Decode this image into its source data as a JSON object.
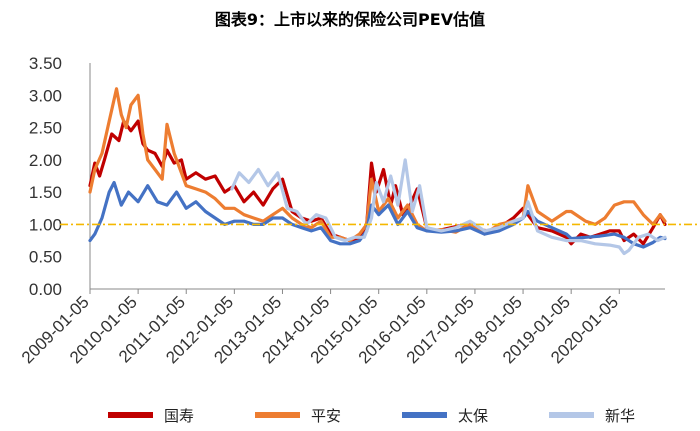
{
  "chart_data": {
    "type": "line",
    "title": "图表9：上市以来的保险公司PEV估值",
    "xlabel": "",
    "ylabel": "",
    "ylim": [
      0,
      3.5
    ],
    "yticks": [
      "3.50",
      "3.00",
      "2.50",
      "2.00",
      "1.50",
      "1.00",
      "0.50",
      "0.00"
    ],
    "xticks": [
      "2009-01-05",
      "2010-01-05",
      "2011-01-05",
      "2012-01-05",
      "2013-01-05",
      "2014-01-05",
      "2015-01-05",
      "2016-01-05",
      "2017-01-05",
      "2018-01-05",
      "2019-01-05",
      "2020-01-05"
    ],
    "xlim": [
      2009.0,
      2020.95
    ],
    "reference_line": {
      "y": 1.0,
      "color": "#F5B800",
      "style": "dash-dot"
    },
    "legend_position": "bottom",
    "series": [
      {
        "name": "国寿",
        "color": "#C00000",
        "x": [
          2009.0,
          2009.1,
          2009.2,
          2009.3,
          2009.45,
          2009.6,
          2009.7,
          2009.85,
          2010.0,
          2010.1,
          2010.2,
          2010.35,
          2010.5,
          2010.6,
          2010.75,
          2010.9,
          2011.0,
          2011.2,
          2011.4,
          2011.6,
          2011.8,
          2012.0,
          2012.2,
          2012.4,
          2012.6,
          2012.8,
          2013.0,
          2013.2,
          2013.4,
          2013.6,
          2013.8,
          2014.0,
          2014.2,
          2014.4,
          2014.6,
          2014.75,
          2014.85,
          2014.95,
          2015.1,
          2015.25,
          2015.35,
          2015.5,
          2015.65,
          2015.8,
          2016.0,
          2016.2,
          2016.5,
          2016.8,
          2017.0,
          2017.3,
          2017.6,
          2017.8,
          2018.0,
          2018.1,
          2018.3,
          2018.6,
          2018.9,
          2019.0,
          2019.2,
          2019.4,
          2019.6,
          2019.8,
          2020.0,
          2020.1,
          2020.3,
          2020.5,
          2020.7,
          2020.85,
          2020.95
        ],
        "values": [
          1.6,
          1.95,
          1.75,
          2.0,
          2.4,
          2.3,
          2.6,
          2.45,
          2.6,
          2.25,
          2.15,
          2.1,
          1.9,
          2.15,
          1.95,
          2.0,
          1.7,
          1.8,
          1.7,
          1.75,
          1.5,
          1.6,
          1.35,
          1.5,
          1.3,
          1.55,
          1.7,
          1.2,
          1.1,
          1.05,
          1.1,
          0.85,
          0.8,
          0.75,
          0.8,
          1.0,
          1.95,
          1.5,
          1.85,
          1.3,
          1.6,
          1.15,
          1.3,
          1.55,
          0.95,
          0.9,
          0.95,
          1.0,
          0.92,
          0.9,
          1.0,
          1.1,
          1.25,
          1.15,
          0.95,
          0.9,
          0.8,
          0.7,
          0.85,
          0.8,
          0.85,
          0.9,
          0.9,
          0.75,
          0.85,
          0.7,
          0.95,
          1.15,
          1.0
        ]
      },
      {
        "name": "平安",
        "color": "#ED7D31",
        "x": [
          2009.0,
          2009.1,
          2009.25,
          2009.4,
          2009.55,
          2009.65,
          2009.75,
          2009.85,
          2010.0,
          2010.1,
          2010.2,
          2010.35,
          2010.5,
          2010.6,
          2010.75,
          2010.9,
          2011.0,
          2011.2,
          2011.4,
          2011.6,
          2011.8,
          2012.0,
          2012.2,
          2012.4,
          2012.6,
          2012.8,
          2013.0,
          2013.2,
          2013.4,
          2013.6,
          2013.8,
          2014.0,
          2014.2,
          2014.4,
          2014.6,
          2014.75,
          2014.85,
          2015.0,
          2015.2,
          2015.4,
          2015.6,
          2015.8,
          2016.0,
          2016.3,
          2016.6,
          2016.9,
          2017.2,
          2017.5,
          2017.8,
          2018.0,
          2018.1,
          2018.3,
          2018.6,
          2018.9,
          2019.0,
          2019.3,
          2019.5,
          2019.7,
          2019.9,
          2020.1,
          2020.3,
          2020.5,
          2020.7,
          2020.85,
          2020.95
        ],
        "values": [
          1.5,
          1.85,
          2.1,
          2.6,
          3.1,
          2.7,
          2.5,
          2.85,
          3.0,
          2.4,
          2.0,
          1.85,
          1.7,
          2.55,
          2.1,
          1.8,
          1.6,
          1.55,
          1.5,
          1.4,
          1.25,
          1.25,
          1.15,
          1.1,
          1.05,
          1.15,
          1.25,
          1.1,
          1.0,
          0.95,
          1.05,
          0.8,
          0.8,
          0.75,
          0.85,
          1.0,
          1.7,
          1.2,
          1.4,
          1.1,
          1.3,
          1.0,
          0.9,
          0.92,
          0.88,
          1.0,
          0.85,
          1.0,
          1.05,
          1.1,
          1.6,
          1.2,
          1.05,
          1.2,
          1.2,
          1.05,
          1.0,
          1.1,
          1.3,
          1.35,
          1.35,
          1.15,
          1.0,
          1.15,
          1.05
        ]
      },
      {
        "name": "太保",
        "color": "#4472C4",
        "x": [
          2009.0,
          2009.1,
          2009.25,
          2009.4,
          2009.5,
          2009.65,
          2009.8,
          2010.0,
          2010.2,
          2010.4,
          2010.6,
          2010.8,
          2011.0,
          2011.2,
          2011.4,
          2011.6,
          2011.8,
          2012.0,
          2012.2,
          2012.4,
          2012.6,
          2012.8,
          2013.0,
          2013.2,
          2013.4,
          2013.6,
          2013.8,
          2014.0,
          2014.2,
          2014.4,
          2014.6,
          2014.75,
          2014.85,
          2015.0,
          2015.2,
          2015.4,
          2015.6,
          2015.8,
          2016.0,
          2016.3,
          2016.6,
          2016.9,
          2017.2,
          2017.5,
          2017.8,
          2018.0,
          2018.1,
          2018.3,
          2018.6,
          2018.9,
          2019.0,
          2019.3,
          2019.6,
          2019.9,
          2020.1,
          2020.3,
          2020.5,
          2020.7,
          2020.85,
          2020.95
        ],
        "values": [
          0.75,
          0.85,
          1.1,
          1.5,
          1.65,
          1.3,
          1.5,
          1.35,
          1.6,
          1.35,
          1.3,
          1.5,
          1.25,
          1.35,
          1.2,
          1.1,
          1.0,
          1.05,
          1.05,
          1.0,
          1.0,
          1.1,
          1.1,
          1.0,
          0.95,
          0.9,
          0.95,
          0.75,
          0.7,
          0.7,
          0.75,
          0.9,
          1.3,
          1.15,
          1.3,
          1.0,
          1.2,
          0.95,
          0.9,
          0.88,
          0.9,
          0.95,
          0.85,
          0.9,
          1.0,
          1.1,
          1.2,
          1.05,
          0.95,
          0.85,
          0.78,
          0.8,
          0.82,
          0.85,
          0.8,
          0.7,
          0.65,
          0.72,
          0.8,
          0.78
        ]
      },
      {
        "name": "新华",
        "color": "#B4C7E7",
        "x": [
          2011.95,
          2012.1,
          2012.3,
          2012.5,
          2012.7,
          2012.9,
          2013.1,
          2013.3,
          2013.5,
          2013.7,
          2013.9,
          2014.1,
          2014.3,
          2014.5,
          2014.7,
          2014.85,
          2014.95,
          2015.1,
          2015.25,
          2015.4,
          2015.55,
          2015.7,
          2015.85,
          2016.0,
          2016.3,
          2016.6,
          2016.9,
          2017.2,
          2017.5,
          2017.8,
          2018.0,
          2018.1,
          2018.3,
          2018.6,
          2018.9,
          2019.2,
          2019.5,
          2019.8,
          2020.0,
          2020.1,
          2020.2,
          2020.4,
          2020.6,
          2020.8,
          2020.95
        ],
        "values": [
          1.55,
          1.8,
          1.65,
          1.85,
          1.6,
          1.8,
          1.25,
          1.2,
          1.0,
          1.15,
          1.1,
          0.8,
          0.75,
          0.8,
          0.8,
          1.1,
          1.65,
          1.35,
          1.75,
          1.3,
          2.0,
          1.2,
          1.6,
          0.95,
          0.9,
          0.95,
          1.05,
          0.9,
          0.95,
          1.05,
          1.1,
          1.35,
          0.9,
          0.8,
          0.75,
          0.75,
          0.7,
          0.68,
          0.65,
          0.55,
          0.6,
          0.8,
          0.85,
          0.75,
          0.8
        ]
      }
    ]
  }
}
